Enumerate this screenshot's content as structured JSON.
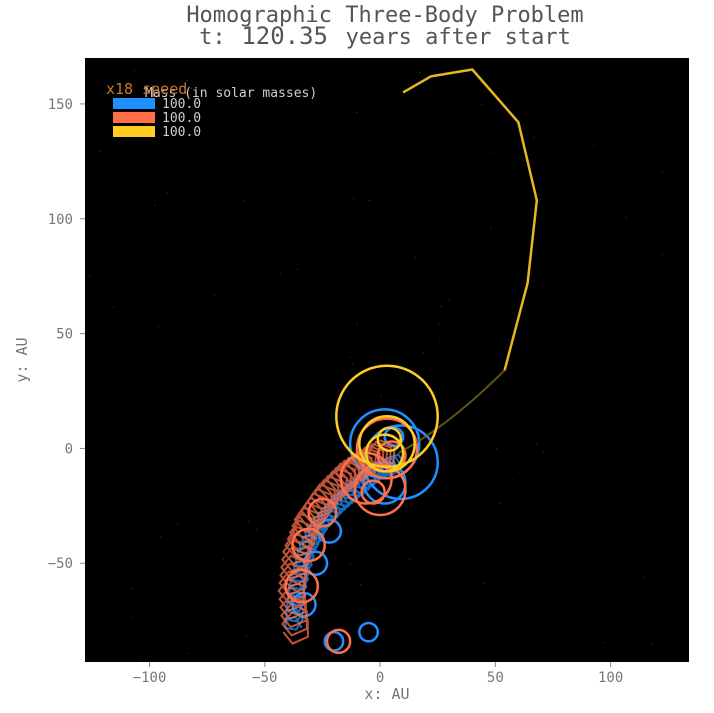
{
  "chart_data": {
    "type": "line",
    "title_line1": "Homographic Three-Body Problem",
    "title_prefix": "t:",
    "title_time": "120.35",
    "title_suffix": "years after start",
    "xlabel": "x: AU",
    "ylabel": "y: AU",
    "xlim": [
      -128,
      134
    ],
    "ylim": [
      -93,
      170
    ],
    "xticks": [
      -100,
      -50,
      0,
      50,
      100
    ],
    "yticks": [
      -50,
      0,
      50,
      100,
      150
    ],
    "grid": false,
    "background": "#000000",
    "speed_label": "x18 speed",
    "legend": {
      "title": "Mass (in solar masses)",
      "placement": "top-left",
      "entries": [
        "100.0",
        "100.0",
        "100.0"
      ]
    },
    "colors": [
      "#1e90ff",
      "#ff6f4a",
      "#ffcc22"
    ],
    "series": [
      {
        "label": "100.0",
        "color": "#1e90ff",
        "center_path": [
          [
            -38,
            -78
          ],
          [
            -36,
            -60
          ],
          [
            -32,
            -44
          ],
          [
            -26,
            -33
          ],
          [
            -18,
            -24
          ],
          [
            -10,
            -17
          ],
          [
            0,
            -9
          ],
          [
            8,
            -6
          ]
        ],
        "loops": [
          {
            "cx": -33,
            "cy": -68,
            "r": 5
          },
          {
            "cx": -28,
            "cy": -50,
            "r": 5
          },
          {
            "cx": -22,
            "cy": -36,
            "r": 5
          },
          {
            "cx": -20,
            "cy": -84,
            "r": 4
          },
          {
            "cx": -5,
            "cy": -80,
            "r": 4
          },
          {
            "cx": 9,
            "cy": -6,
            "r": 16
          },
          {
            "cx": 2,
            "cy": 2,
            "r": 15
          },
          {
            "cx": 6,
            "cy": 5,
            "r": 4
          },
          {
            "cx": 2,
            "cy": -15,
            "r": 9
          }
        ]
      },
      {
        "label": "100.0",
        "color": "#ff6f4a",
        "center_path": [
          [
            -36,
            -80
          ],
          [
            -38,
            -62
          ],
          [
            -36,
            -45
          ],
          [
            -31,
            -31
          ],
          [
            -24,
            -21
          ],
          [
            -15,
            -12
          ],
          [
            -6,
            -6
          ],
          [
            2,
            -2
          ]
        ],
        "loops": [
          {
            "cx": -34,
            "cy": -60,
            "r": 7
          },
          {
            "cx": -31,
            "cy": -42,
            "r": 7
          },
          {
            "cx": -25,
            "cy": -28,
            "r": 6
          },
          {
            "cx": -18,
            "cy": -84,
            "r": 5
          },
          {
            "cx": 0,
            "cy": -18,
            "r": 11
          },
          {
            "cx": -6,
            "cy": -13,
            "r": 11
          },
          {
            "cx": 3,
            "cy": 0,
            "r": 13
          },
          {
            "cx": 5,
            "cy": -3,
            "r": 6
          },
          {
            "cx": -3,
            "cy": -19,
            "r": 5
          }
        ]
      },
      {
        "label": "100.0",
        "color": "#ffcc22",
        "center_path": [
          [
            54,
            34
          ],
          [
            64,
            72
          ],
          [
            68,
            108
          ],
          [
            60,
            142
          ],
          [
            40,
            165
          ],
          [
            22,
            162
          ],
          [
            10,
            155
          ]
        ],
        "loops": [
          {
            "cx": 3,
            "cy": 14,
            "r": 22
          },
          {
            "cx": 3,
            "cy": 2,
            "r": 12
          },
          {
            "cx": 2,
            "cy": -2,
            "r": 8
          },
          {
            "cx": 4,
            "cy": 4,
            "r": 5
          }
        ]
      }
    ]
  }
}
